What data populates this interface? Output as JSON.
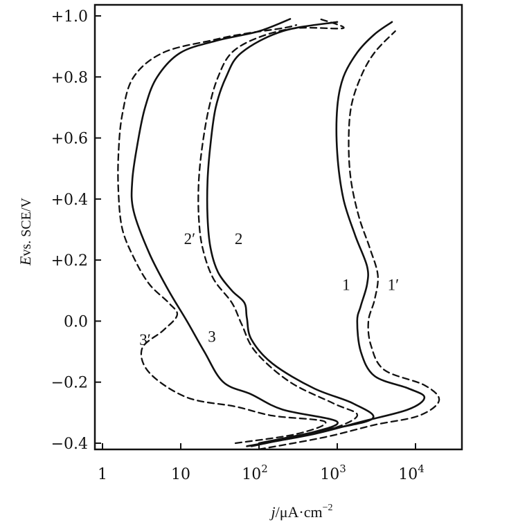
{
  "chart_data": {
    "type": "line",
    "title": "",
    "xlabel": {
      "italic": "j",
      "text": "/μA·cm",
      "sup": "−2"
    },
    "ylabel": {
      "italic": "E",
      "text": "vs. SCE/V"
    },
    "x_scale": "log",
    "xlim": [
      1,
      50000
    ],
    "ylim": [
      -0.42,
      1.02
    ],
    "grid": false,
    "legend": "none",
    "x_ticks": [
      {
        "value": 1,
        "label": "1"
      },
      {
        "value": 10,
        "label": "10"
      },
      {
        "value": 100,
        "label": "10",
        "sup": "2"
      },
      {
        "value": 1000,
        "label": "10",
        "sup": "3"
      },
      {
        "value": 10000,
        "label": "10",
        "sup": "4"
      }
    ],
    "y_ticks": [
      {
        "value": 1.0,
        "label": "+1.0"
      },
      {
        "value": 0.8,
        "label": "+0.8"
      },
      {
        "value": 0.6,
        "label": "+0.6"
      },
      {
        "value": 0.4,
        "label": "+0.4"
      },
      {
        "value": 0.2,
        "label": "+0.2"
      },
      {
        "value": 0.0,
        "label": "0.0"
      },
      {
        "value": -0.2,
        "label": "−0.2"
      },
      {
        "value": -0.4,
        "label": "−0.4"
      }
    ],
    "series": [
      {
        "id": "curve-1",
        "style": "solid",
        "label": {
          "text": "1",
          "x": 1300,
          "y": 0.12
        },
        "points": [
          [
            70,
            -0.41
          ],
          [
            500,
            -0.37
          ],
          [
            2000,
            -0.33
          ],
          [
            8000,
            -0.29
          ],
          [
            13000,
            -0.25
          ],
          [
            8000,
            -0.22
          ],
          [
            3000,
            -0.18
          ],
          [
            2000,
            -0.1
          ],
          [
            1800,
            0.0
          ],
          [
            2000,
            0.05
          ],
          [
            2400,
            0.12
          ],
          [
            2400,
            0.18
          ],
          [
            1700,
            0.28
          ],
          [
            1200,
            0.4
          ],
          [
            1000,
            0.55
          ],
          [
            1000,
            0.7
          ],
          [
            1200,
            0.8
          ],
          [
            1800,
            0.88
          ],
          [
            3000,
            0.94
          ],
          [
            5000,
            0.98
          ]
        ]
      },
      {
        "id": "curve-1-prime",
        "style": "dashed",
        "label": {
          "text": "1′",
          "x": 5200,
          "y": 0.12
        },
        "points": [
          [
            100,
            -0.42
          ],
          [
            700,
            -0.38
          ],
          [
            3000,
            -0.34
          ],
          [
            11000,
            -0.31
          ],
          [
            20000,
            -0.26
          ],
          [
            13000,
            -0.21
          ],
          [
            4000,
            -0.16
          ],
          [
            2700,
            -0.08
          ],
          [
            2500,
            0.0
          ],
          [
            3000,
            0.07
          ],
          [
            3300,
            0.15
          ],
          [
            2600,
            0.24
          ],
          [
            1900,
            0.34
          ],
          [
            1500,
            0.46
          ],
          [
            1400,
            0.58
          ],
          [
            1500,
            0.7
          ],
          [
            2000,
            0.8
          ],
          [
            3000,
            0.88
          ],
          [
            5500,
            0.95
          ]
        ]
      },
      {
        "id": "curve-2",
        "style": "solid",
        "label": {
          "text": "2",
          "x": 55,
          "y": 0.27
        },
        "points": [
          [
            100,
            -0.4
          ],
          [
            600,
            -0.36
          ],
          [
            2800,
            -0.32
          ],
          [
            1600,
            -0.27
          ],
          [
            500,
            -0.22
          ],
          [
            150,
            -0.14
          ],
          [
            80,
            -0.06
          ],
          [
            70,
            0.01
          ],
          [
            65,
            0.06
          ],
          [
            45,
            0.1
          ],
          [
            30,
            0.16
          ],
          [
            24,
            0.24
          ],
          [
            22,
            0.34
          ],
          [
            22,
            0.46
          ],
          [
            24,
            0.58
          ],
          [
            28,
            0.7
          ],
          [
            38,
            0.8
          ],
          [
            60,
            0.88
          ],
          [
            200,
            0.95
          ],
          [
            1000,
            0.98
          ]
        ]
      },
      {
        "id": "curve-2-prime",
        "style": "dashed",
        "label": {
          "text": "2′",
          "x": 13,
          "y": 0.27
        },
        "points": [
          [
            120,
            -0.4
          ],
          [
            700,
            -0.36
          ],
          [
            1800,
            -0.31
          ],
          [
            900,
            -0.27
          ],
          [
            250,
            -0.2
          ],
          [
            90,
            -0.1
          ],
          [
            60,
            -0.01
          ],
          [
            45,
            0.06
          ],
          [
            26,
            0.14
          ],
          [
            19,
            0.24
          ],
          [
            17,
            0.34
          ],
          [
            17,
            0.46
          ],
          [
            19,
            0.58
          ],
          [
            23,
            0.7
          ],
          [
            30,
            0.8
          ],
          [
            45,
            0.88
          ],
          [
            100,
            0.93
          ],
          [
            300,
            0.96
          ],
          [
            1200,
            0.96
          ],
          [
            600,
            0.99
          ]
        ]
      },
      {
        "id": "curve-3",
        "style": "solid",
        "label": {
          "text": "3",
          "x": 25,
          "y": -0.05
        },
        "points": [
          [
            80,
            -0.41
          ],
          [
            400,
            -0.37
          ],
          [
            1000,
            -0.33
          ],
          [
            200,
            -0.29
          ],
          [
            80,
            -0.24
          ],
          [
            35,
            -0.2
          ],
          [
            20,
            -0.1
          ],
          [
            12,
            0.0
          ],
          [
            7,
            0.1
          ],
          [
            4,
            0.22
          ],
          [
            2.5,
            0.36
          ],
          [
            2.4,
            0.46
          ],
          [
            2.8,
            0.58
          ],
          [
            3.5,
            0.7
          ],
          [
            5,
            0.8
          ],
          [
            10,
            0.88
          ],
          [
            30,
            0.92
          ],
          [
            100,
            0.95
          ],
          [
            250,
            0.99
          ]
        ]
      },
      {
        "id": "curve-3-prime",
        "style": "dashed",
        "label": {
          "text": "3′",
          "x": 3.5,
          "y": -0.06
        },
        "points": [
          [
            50,
            -0.4
          ],
          [
            300,
            -0.37
          ],
          [
            700,
            -0.33
          ],
          [
            150,
            -0.31
          ],
          [
            50,
            -0.28
          ],
          [
            12,
            -0.25
          ],
          [
            4,
            -0.17
          ],
          [
            3.2,
            -0.09
          ],
          [
            6,
            -0.03
          ],
          [
            9,
            0.02
          ],
          [
            7,
            0.06
          ],
          [
            4,
            0.12
          ],
          [
            2.6,
            0.2
          ],
          [
            1.8,
            0.3
          ],
          [
            1.6,
            0.42
          ],
          [
            1.6,
            0.55
          ],
          [
            1.8,
            0.68
          ],
          [
            2.5,
            0.8
          ],
          [
            6,
            0.88
          ],
          [
            25,
            0.92
          ],
          [
            60,
            0.94
          ],
          [
            200,
            0.96
          ],
          [
            300,
            0.97
          ]
        ]
      }
    ]
  }
}
